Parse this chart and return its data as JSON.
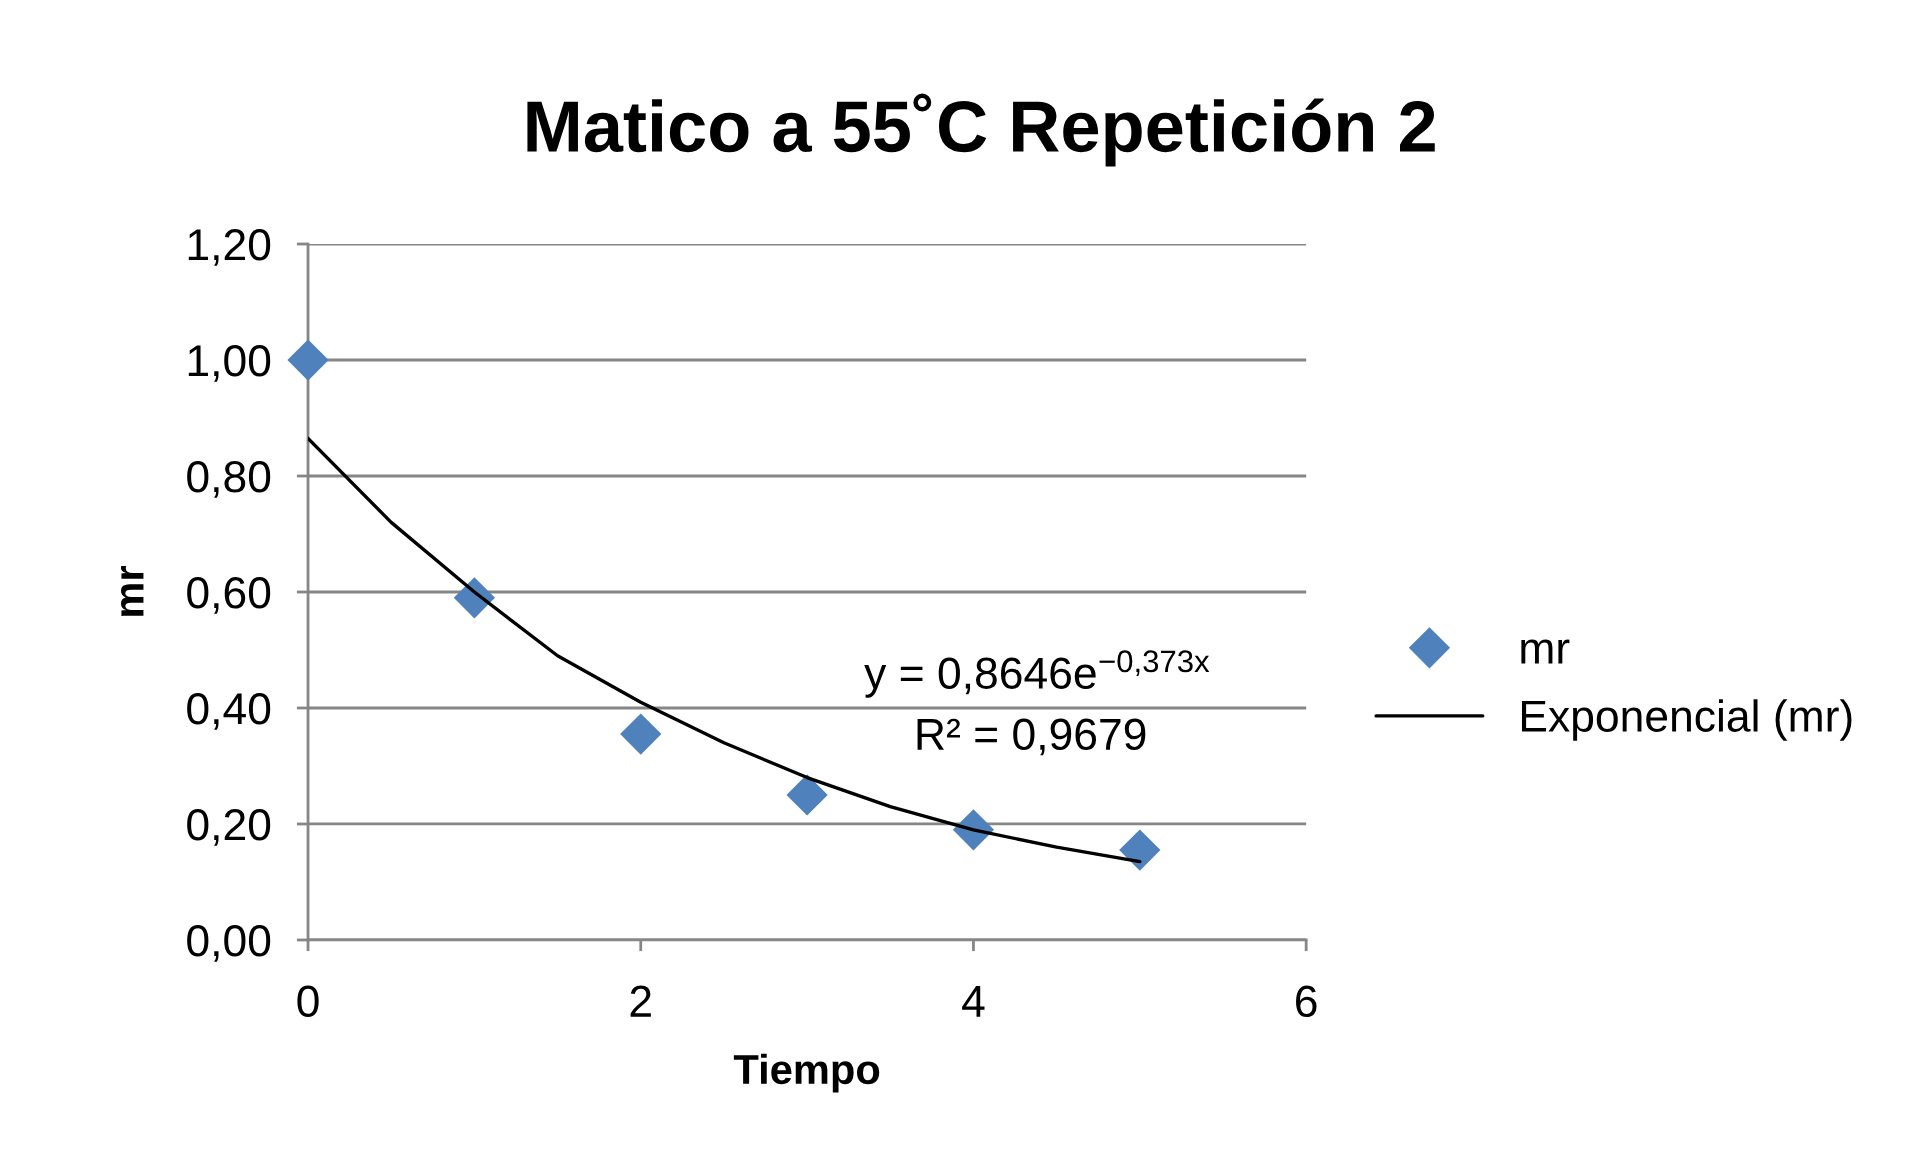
{
  "chart_data": {
    "type": "scatter",
    "title": "Matico a 55˚C Repetición 2",
    "xlabel": "Tiempo",
    "ylabel": "mr",
    "series": [
      {
        "name": "mr",
        "marker": "diamond",
        "color": "#4f81bd",
        "x": [
          0,
          1,
          2,
          3,
          4,
          5
        ],
        "values": [
          1.0,
          0.59,
          0.355,
          0.25,
          0.19,
          0.155
        ]
      },
      {
        "name": "Exponencial (mr)",
        "type": "line",
        "line_style": "solid",
        "color": "#000000",
        "x": [
          0,
          0.5,
          1,
          1.5,
          2,
          2.5,
          3,
          3.5,
          4,
          4.5,
          5
        ],
        "values": [
          0.865,
          0.72,
          0.6,
          0.49,
          0.41,
          0.34,
          0.28,
          0.23,
          0.19,
          0.16,
          0.135
        ]
      }
    ],
    "annotations": [
      "y = 0,8646e$^{−0,373x}$",
      "R² = 0,9679"
    ],
    "xlim": [
      0,
      6
    ],
    "xticks": [
      0,
      2,
      4,
      6
    ],
    "ylim": [
      0,
      1.2
    ],
    "yticks": [
      {
        "value": 0,
        "label": "0,00"
      },
      {
        "value": 0.2,
        "label": "0,20"
      },
      {
        "value": 0.4,
        "label": "0,40"
      },
      {
        "value": 0.6,
        "label": "0,60"
      },
      {
        "value": 0.8,
        "label": "0,80"
      },
      {
        "value": 1.0,
        "label": "1,00"
      },
      {
        "value": 1.2,
        "label": "1,20"
      }
    ],
    "grid": "y",
    "legend": "right"
  }
}
